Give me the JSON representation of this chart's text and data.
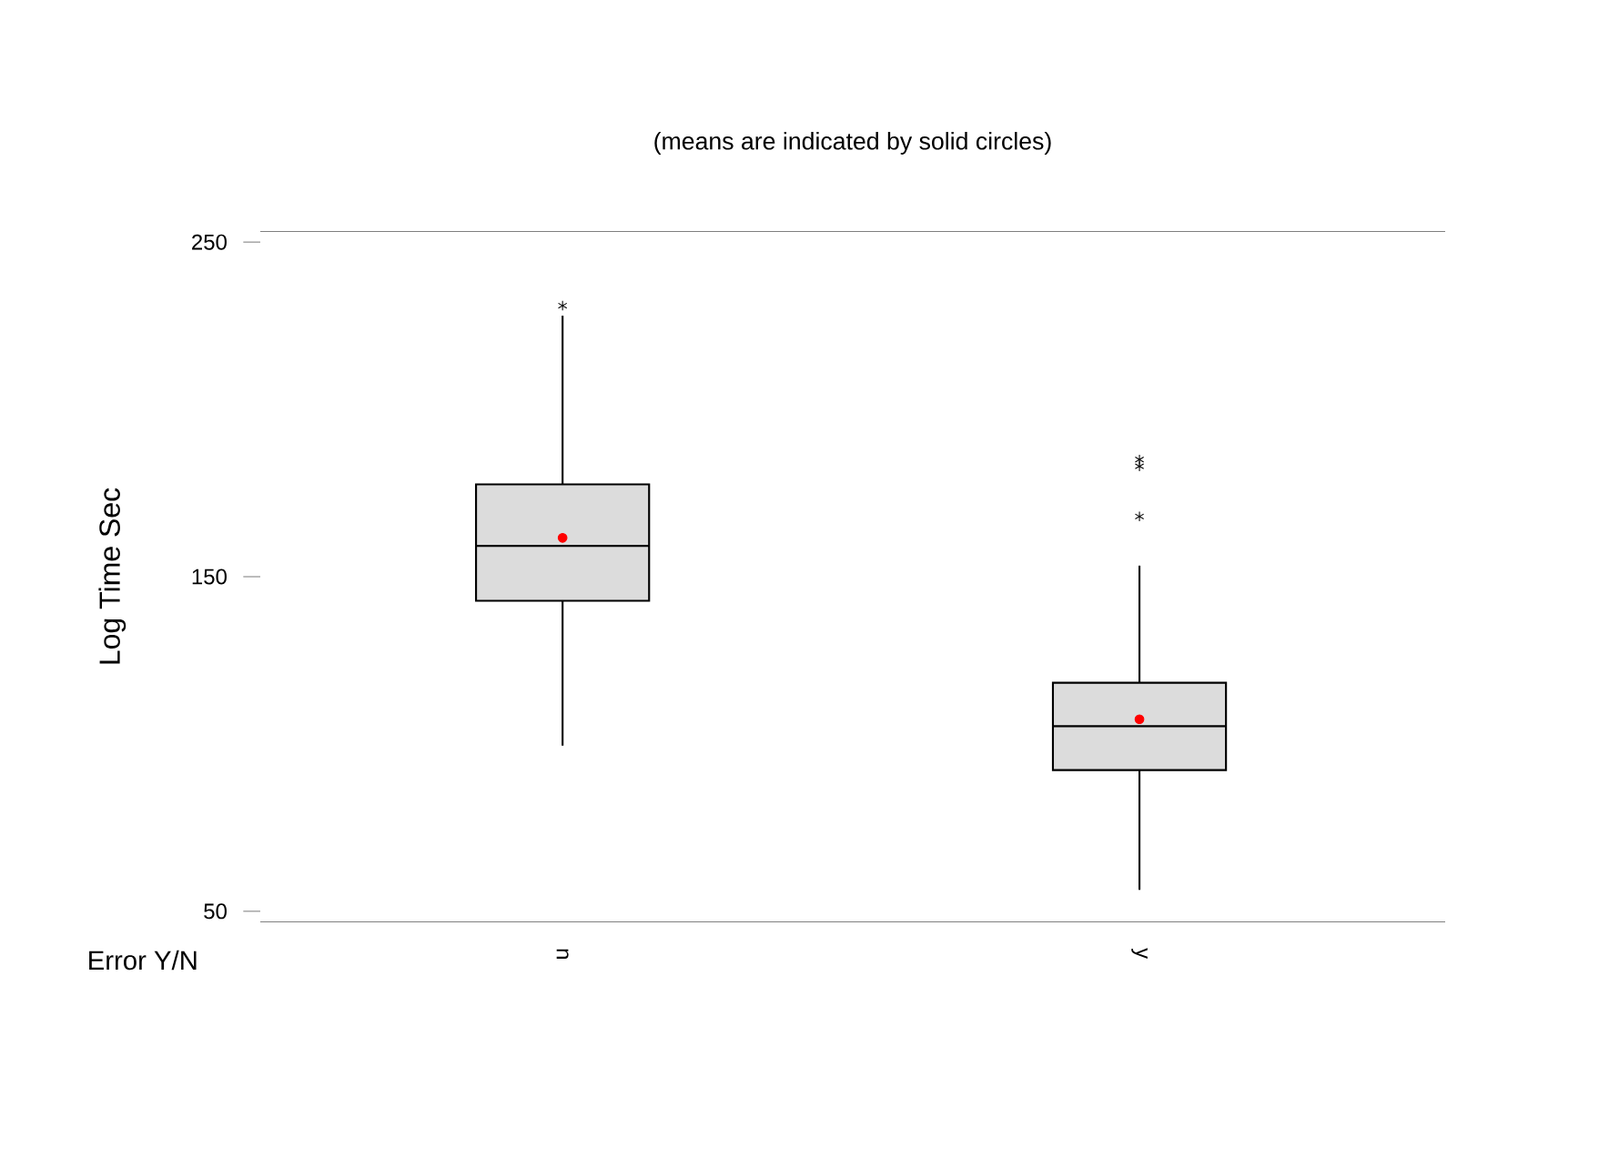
{
  "chart_data": {
    "type": "box",
    "title": "(means are indicated by solid circles)",
    "xlabel": "Error Y/N",
    "ylabel": "Log Time Sec",
    "categories": [
      "n",
      "y"
    ],
    "boxes": [
      {
        "low": 99.5,
        "q1": 142.8,
        "median": 159.2,
        "q3": 177.6,
        "high": 228,
        "mean": 161.6,
        "outliers": [
          231
        ]
      },
      {
        "low": 56.4,
        "q1": 92.2,
        "median": 105.3,
        "q3": 118.3,
        "high": 153.3,
        "mean": 107.4,
        "outliers": [
          185,
          183,
          168
        ]
      }
    ],
    "color": "#dcdcdc",
    "ylim": [
      46.7,
      253.3
    ],
    "yticks": [
      50,
      150,
      250
    ]
  }
}
